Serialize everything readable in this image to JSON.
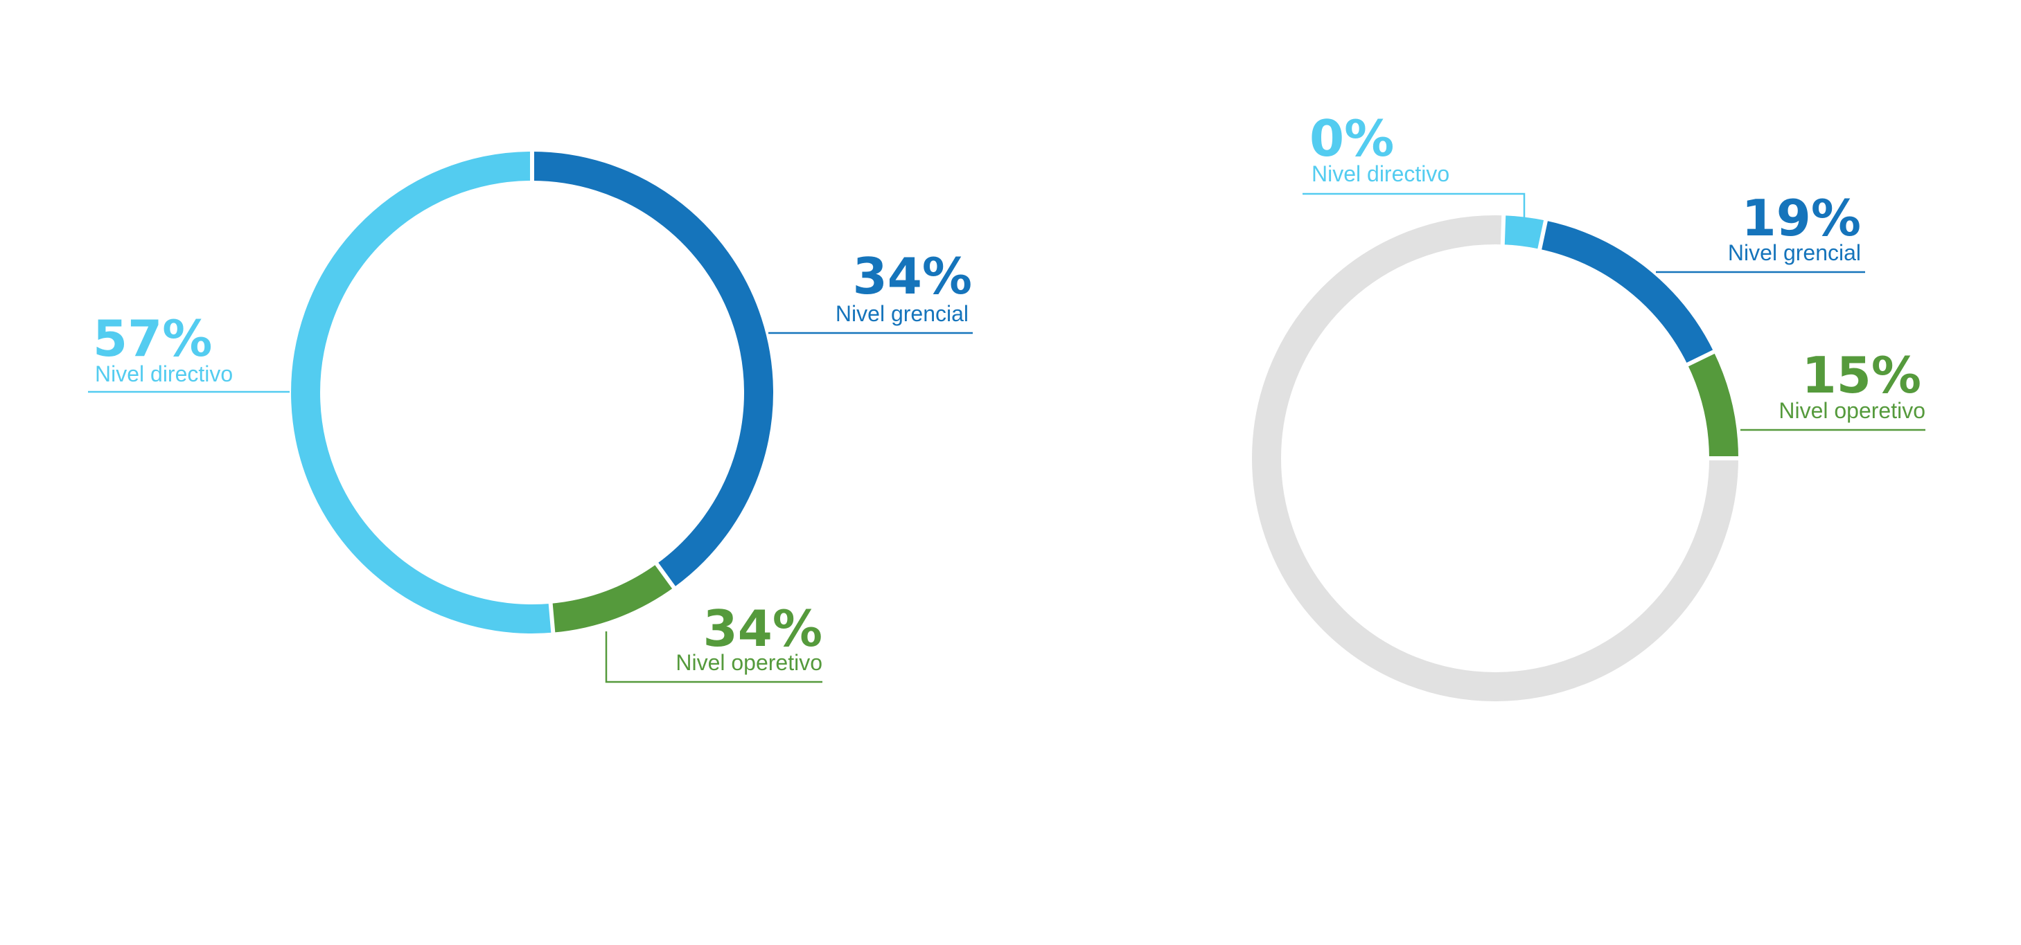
{
  "colors": {
    "directivo": "#53ccf0",
    "gerencial": "#1574bb",
    "operativo": "#559a3c",
    "track": "#e1e1e1",
    "gap": "#ffffff"
  },
  "chart_data": [
    {
      "type": "donut",
      "title": "",
      "slices": [
        {
          "key": "gerencial",
          "label": "Nivel grencial",
          "value_text": "34%",
          "value": 34,
          "start_deg": 0,
          "sweep_deg": 144
        },
        {
          "key": "operativo",
          "label": "Nivel operetivo",
          "value_text": "34%",
          "value": 34,
          "start_deg": 144,
          "sweep_deg": 31
        },
        {
          "key": "directivo",
          "label": "Nivel directivo",
          "value_text": "57%",
          "value": 57,
          "start_deg": 175,
          "sweep_deg": 185
        }
      ]
    },
    {
      "type": "donut",
      "title": "",
      "track": true,
      "slices": [
        {
          "key": "directivo",
          "label": "Nivel directivo",
          "value_text": "0%",
          "value": 0,
          "start_deg": 2,
          "sweep_deg": 10
        },
        {
          "key": "gerencial",
          "label": "Nivel grencial",
          "value_text": "19%",
          "value": 19,
          "start_deg": 12,
          "sweep_deg": 52
        },
        {
          "key": "operativo",
          "label": "Nivel operetivo",
          "value_text": "15%",
          "value": 15,
          "start_deg": 64,
          "sweep_deg": 26
        }
      ]
    }
  ]
}
